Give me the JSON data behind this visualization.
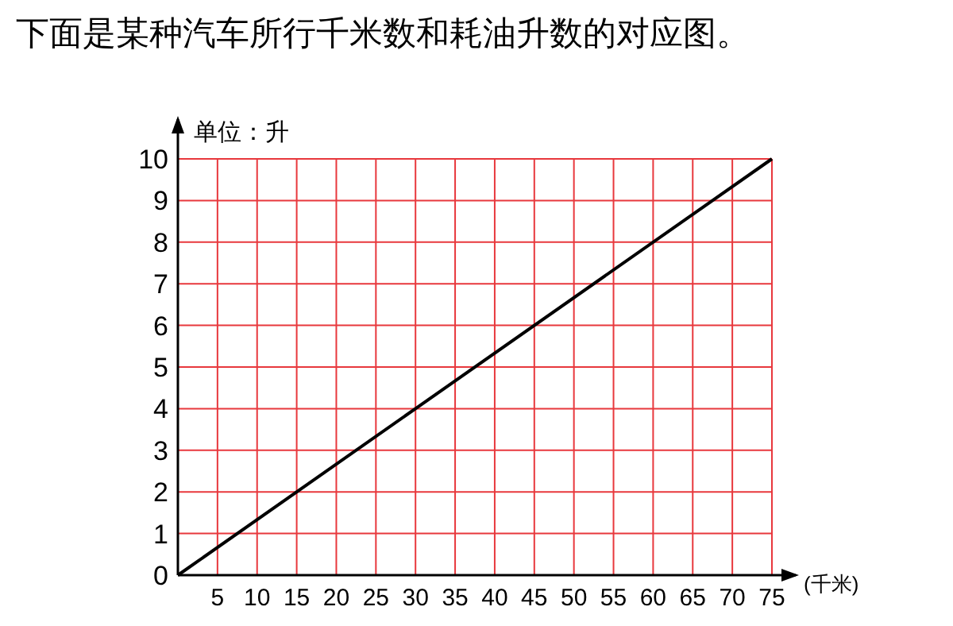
{
  "chart_data": {
    "type": "line",
    "title": "下面是某种汽车所行千米数和耗油升数的对应图。",
    "ylabel": "单位：升",
    "xlabel": "(千米)",
    "series": [
      {
        "color": "#000000",
        "x": [
          0,
          75
        ],
        "values": [
          0,
          10
        ]
      }
    ],
    "xlim": [
      0,
      75
    ],
    "xticks": [
      5,
      10,
      15,
      20,
      25,
      30,
      35,
      40,
      45,
      50,
      55,
      60,
      65,
      70,
      75
    ],
    "ylim": [
      0,
      10
    ],
    "yticks": [
      0,
      1,
      2,
      3,
      4,
      5,
      6,
      7,
      8,
      9,
      10
    ],
    "grid": true,
    "marker": "none",
    "line_style": "solid"
  }
}
